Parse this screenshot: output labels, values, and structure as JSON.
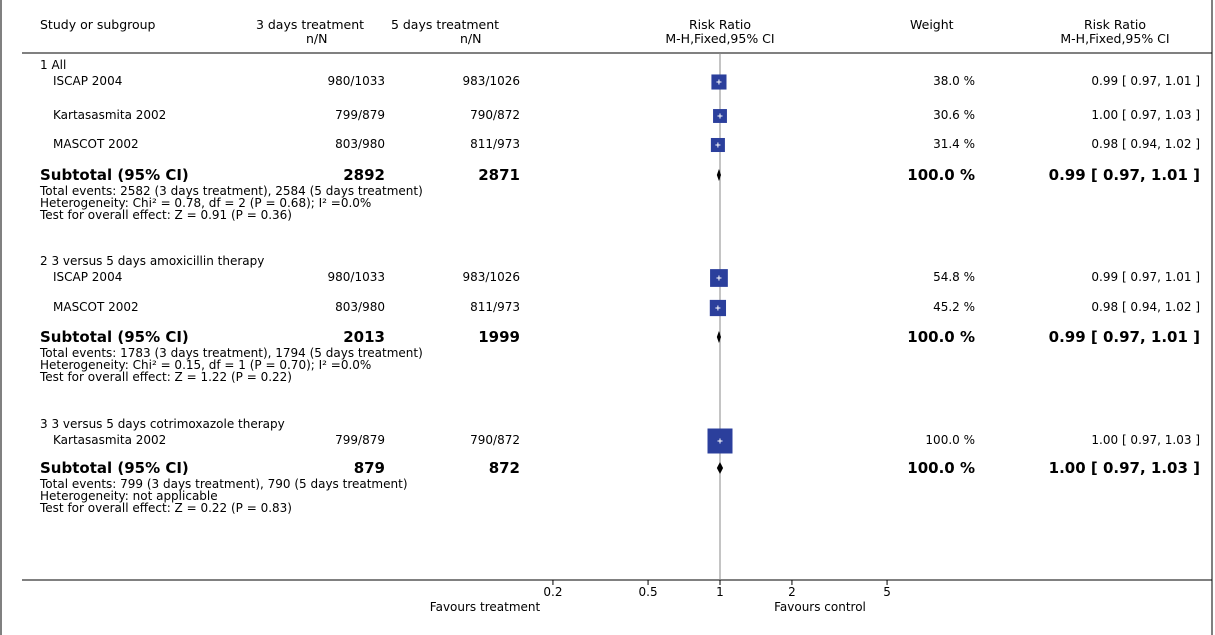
{
  "header": {
    "study": "Study or subgroup",
    "group1": "3 days treatment",
    "group1_sub": "n/N",
    "group2": "5 days treatment",
    "group2_sub": "n/N",
    "plot_title": "Risk Ratio",
    "plot_sub": "M-H,Fixed,95% CI",
    "weight": "Weight",
    "rr_title": "Risk Ratio",
    "rr_sub": "M-H,Fixed,95% CI"
  },
  "subgroups": [
    {
      "label": "1 All",
      "studies": [
        {
          "name": "ISCAP 2004",
          "n1": "980/1033",
          "n2": "983/1026",
          "weight": "38.0 %",
          "ci_text": "0.99 [ 0.97, 1.01 ]",
          "rr": 0.99,
          "lo": 0.97,
          "hi": 1.01,
          "w": 38.0
        },
        {
          "name": "Kartasasmita 2002",
          "n1": "799/879",
          "n2": "790/872",
          "weight": "30.6 %",
          "ci_text": "1.00 [ 0.97, 1.03 ]",
          "rr": 1.0,
          "lo": 0.97,
          "hi": 1.03,
          "w": 30.6
        },
        {
          "name": "MASCOT 2002",
          "n1": "803/980",
          "n2": "811/973",
          "weight": "31.4 %",
          "ci_text": "0.98 [ 0.94, 1.02 ]",
          "rr": 0.98,
          "lo": 0.94,
          "hi": 1.02,
          "w": 31.4
        }
      ],
      "subtotal": {
        "label": "Subtotal (95% CI)",
        "n1": "2892",
        "n2": "2871",
        "weight": "100.0 %",
        "ci_text": "0.99 [ 0.97, 1.01 ]",
        "rr": 0.99,
        "lo": 0.97,
        "hi": 1.01
      },
      "notes": [
        "Total events: 2582 (3 days treatment), 2584 (5 days treatment)",
        "Heterogeneity: Chi² = 0.78, df = 2 (P = 0.68); I² =0.0%",
        "Test for overall effect: Z = 0.91 (P = 0.36)"
      ]
    },
    {
      "label": "2 3 versus 5 days amoxicillin therapy",
      "studies": [
        {
          "name": "ISCAP 2004",
          "n1": "980/1033",
          "n2": "983/1026",
          "weight": "54.8 %",
          "ci_text": "0.99 [ 0.97, 1.01 ]",
          "rr": 0.99,
          "lo": 0.97,
          "hi": 1.01,
          "w": 54.8
        },
        {
          "name": "MASCOT 2002",
          "n1": "803/980",
          "n2": "811/973",
          "weight": "45.2 %",
          "ci_text": "0.98 [ 0.94, 1.02 ]",
          "rr": 0.98,
          "lo": 0.94,
          "hi": 1.02,
          "w": 45.2
        }
      ],
      "subtotal": {
        "label": "Subtotal (95% CI)",
        "n1": "2013",
        "n2": "1999",
        "weight": "100.0 %",
        "ci_text": "0.99 [ 0.97, 1.01 ]",
        "rr": 0.99,
        "lo": 0.97,
        "hi": 1.01
      },
      "notes": [
        "Total events: 1783 (3 days treatment), 1794 (5 days treatment)",
        "Heterogeneity: Chi² = 0.15, df = 1 (P = 0.70); I² =0.0%",
        "Test for overall effect: Z = 1.22 (P = 0.22)"
      ]
    },
    {
      "label": "3 3 versus 5 days cotrimoxazole therapy",
      "studies": [
        {
          "name": "Kartasasmita 2002",
          "n1": "799/879",
          "n2": "790/872",
          "weight": "100.0 %",
          "ci_text": "1.00 [ 0.97, 1.03 ]",
          "rr": 1.0,
          "lo": 0.97,
          "hi": 1.03,
          "w": 100.0
        }
      ],
      "subtotal": {
        "label": "Subtotal (95% CI)",
        "n1": "879",
        "n2": "872",
        "weight": "100.0 %",
        "ci_text": "1.00 [ 0.97, 1.03 ]",
        "rr": 1.0,
        "lo": 0.97,
        "hi": 1.03
      },
      "notes": [
        "Total events: 799 (3 days treatment), 790 (5 days treatment)",
        "Heterogeneity: not applicable",
        "Test for overall effect: Z = 0.22 (P = 0.83)"
      ]
    }
  ],
  "axis": {
    "ticks": [
      "0.2",
      "0.5",
      "1",
      "2",
      "5"
    ],
    "left_label": "Favours treatment",
    "right_label": "Favours control"
  },
  "colors": {
    "box": "#2b3f9c",
    "line": "#000000"
  },
  "chart_data": {
    "type": "forest",
    "scale": "log",
    "xlim": [
      0.2,
      5
    ],
    "ticks": [
      0.2,
      0.5,
      1,
      2,
      5
    ]
  }
}
